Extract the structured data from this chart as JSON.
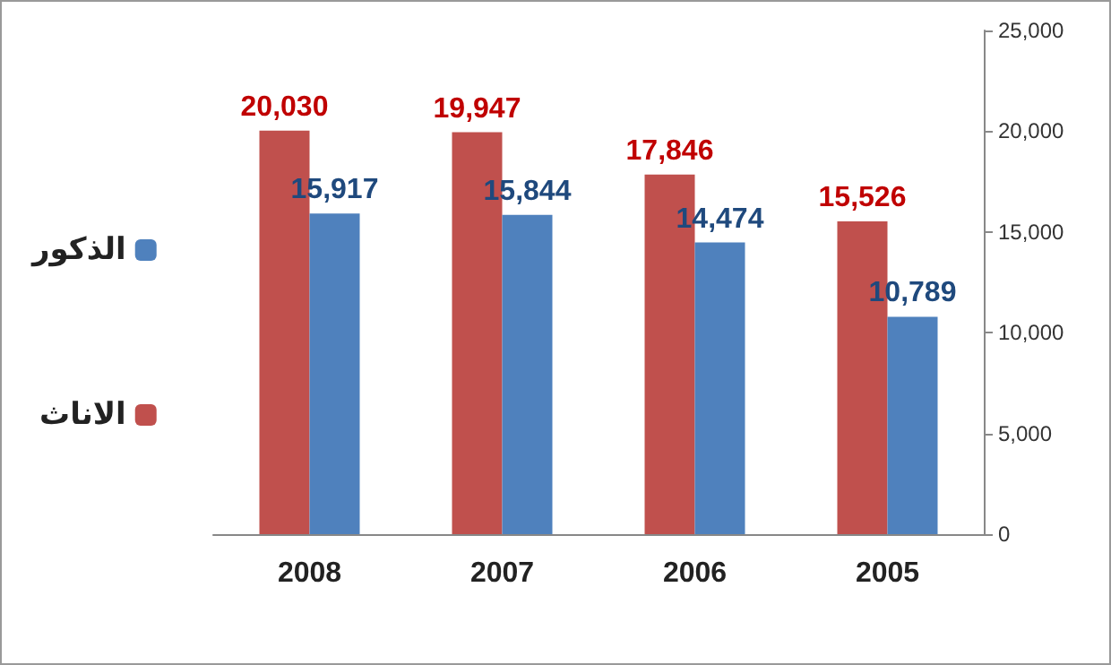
{
  "chart_data": {
    "type": "bar",
    "categories": [
      "2008",
      "2007",
      "2006",
      "2005"
    ],
    "series": [
      {
        "name": "الاناث",
        "color": "#c0504d",
        "values": [
          20030,
          19947,
          17846,
          15526
        ],
        "value_labels": [
          "20,030",
          "19,947",
          "17,846",
          "15,526"
        ]
      },
      {
        "name": "الذكور",
        "color": "#4f81bd",
        "values": [
          15917,
          15844,
          14474,
          10789
        ],
        "value_labels": [
          "15,917",
          "15,844",
          "14,474",
          "10,789"
        ]
      }
    ],
    "ylim": [
      0,
      25000
    ],
    "yticks": [
      0,
      {
        "value": 5000,
        "label": "5,000"
      },
      {
        "value": 10000,
        "label": "10,000"
      },
      {
        "value": 15000,
        "label": "15,000"
      },
      {
        "value": 20000,
        "label": "20,000"
      },
      {
        "value": 25000,
        "label": "25,000"
      }
    ],
    "grid": false,
    "legend": "left"
  }
}
